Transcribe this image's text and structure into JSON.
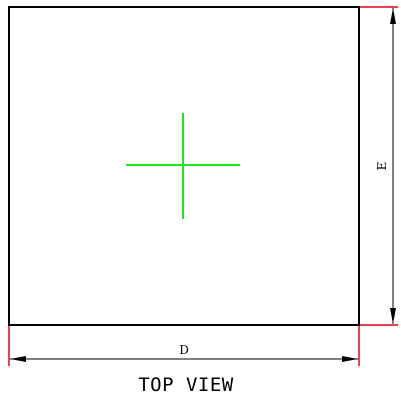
{
  "dimensions": {
    "width_label": "D",
    "height_label": "E"
  },
  "view_title": "TOP VIEW",
  "colors": {
    "outline": "#000000",
    "extension_line": "#e8001c",
    "center_mark": "#19e81f",
    "dimension_line": "#000000",
    "background": "#ffffff"
  }
}
